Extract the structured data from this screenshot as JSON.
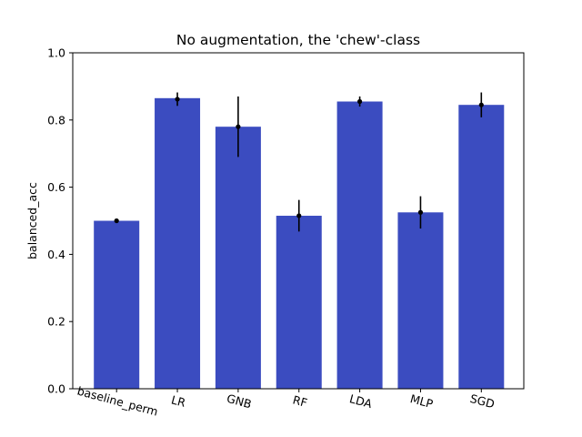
{
  "chart_data": {
    "type": "bar",
    "title": "No augmentation, the 'chew'-class",
    "xlabel": "",
    "ylabel": "balanced_acc",
    "categories": [
      "baseline_perm",
      "LR",
      "GNB",
      "RF",
      "LDA",
      "MLP",
      "SGD"
    ],
    "values": [
      0.5,
      0.865,
      0.78,
      0.515,
      0.855,
      0.525,
      0.845
    ],
    "mean_points": [
      0.5,
      0.862,
      0.78,
      0.515,
      0.855,
      0.525,
      0.845
    ],
    "error": [
      0.0,
      0.02,
      0.09,
      0.047,
      0.015,
      0.048,
      0.037
    ],
    "ylim": [
      0,
      1.0
    ],
    "yticks": [
      "0.0",
      "0.2",
      "0.4",
      "0.6",
      "0.8",
      "1.0"
    ],
    "grid": false,
    "bar_color": "#3b4cc0"
  }
}
